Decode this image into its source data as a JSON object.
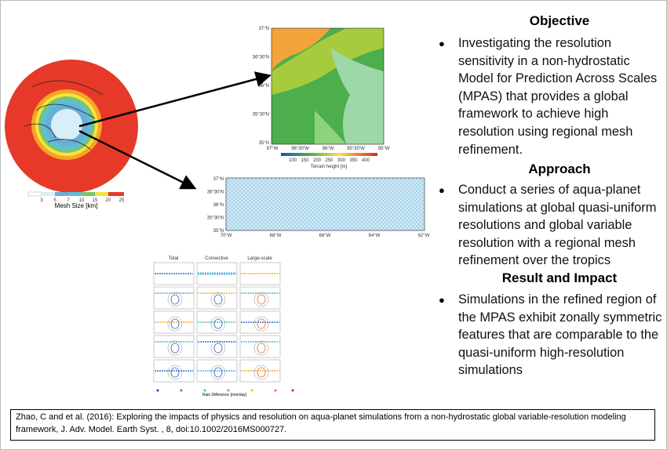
{
  "sections": [
    {
      "heading": "Objective",
      "bullets": [
        "Investigating the resolution sensitivity in a non-hydrostatic Model for Prediction Across Scales (MPAS) that provides a global framework to achieve high resolution using regional mesh refinement."
      ]
    },
    {
      "heading": "Approach",
      "bullets": [
        "Conduct a series of aqua-planet simulations at global quasi-uniform resolutions and global variable resolution with a regional mesh refinement over the tropics"
      ]
    },
    {
      "heading": "Result and Impact",
      "bullets": [
        "Simulations in the refined region of the MPAS exhibit zonally symmetric features that are comparable to the quasi-uniform high-resolution simulations"
      ]
    }
  ],
  "figures": {
    "globe": {
      "colorbar_ticks": [
        "3",
        "5",
        "7",
        "10",
        "15",
        "20",
        "25"
      ],
      "colorbar_label": "Mesh Size [km]"
    },
    "terrain": {
      "lat_labels": [
        "37°N",
        "36°30'N",
        "36°N",
        "35°30'N",
        "35°N"
      ],
      "lon_labels": [
        "97°W",
        "96°30'W",
        "96°W",
        "95°30'W",
        "95°W"
      ],
      "colorbar_ticks": [
        "100",
        "150",
        "200",
        "250",
        "300",
        "350",
        "400"
      ],
      "colorbar_label": "Terrain height [m]"
    },
    "mesh": {
      "lat_labels": [
        "37°N",
        "36°30'N",
        "36°N",
        "35°30'N",
        "35°N"
      ],
      "lon_labels": [
        "70°W",
        "68°W",
        "66°W",
        "64°W",
        "62°W"
      ]
    },
    "panels": {
      "columns": [
        "Total",
        "Convective",
        "Large-scale"
      ],
      "colorbar_label": "Rain Difference [mm/day]"
    }
  },
  "citation": "Zhao, C and et al. (2016): Exploring the impacts of physics and resolution on aqua-planet simulations from a non-hydrostatic global variable-resolution modeling framework, J. Adv. Model. Earth Syst. , 8, doi:10.1002/2016MS000727."
}
